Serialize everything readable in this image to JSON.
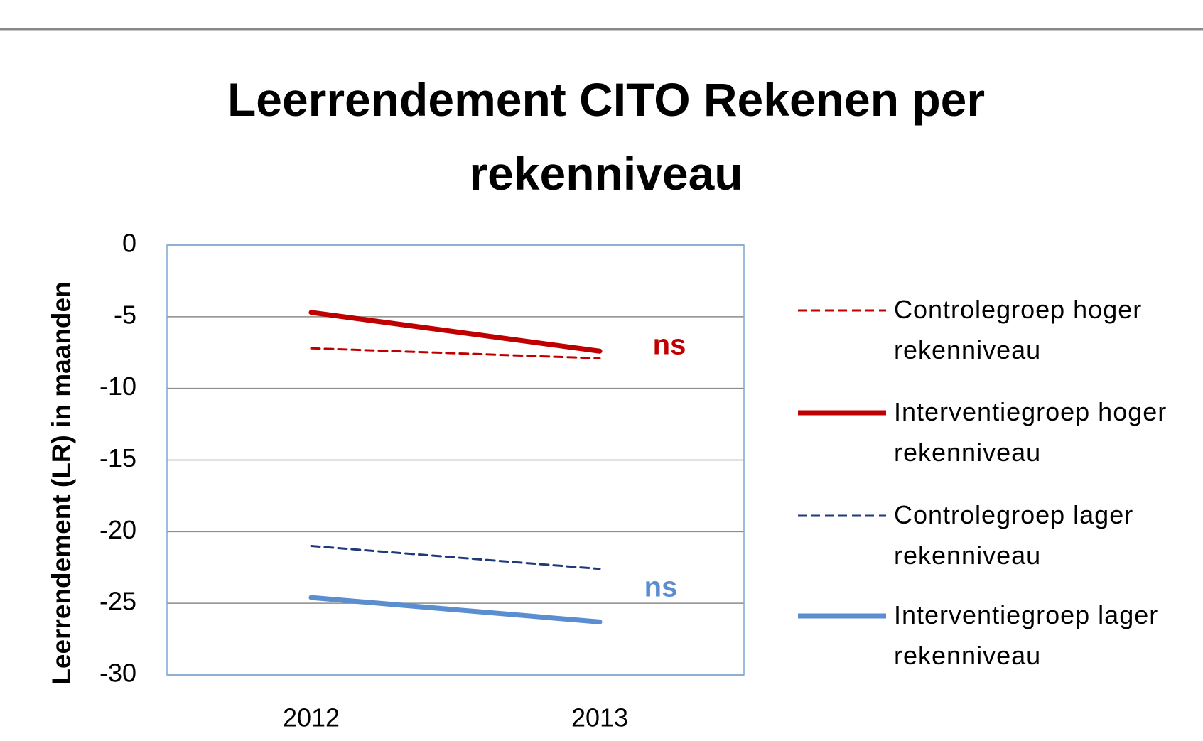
{
  "chart_data": {
    "type": "line",
    "title": "Leerrendement CITO Rekenen per rekenniveau",
    "ylabel": "Leerrendement (LR) in maanden",
    "categories": [
      "2012",
      "2013"
    ],
    "series": [
      {
        "name": "Controlegroep hoger rekenniveau",
        "color": "#c00000",
        "style": "dashed",
        "values": [
          -7.2,
          -7.9
        ]
      },
      {
        "name": "Interventiegroep hoger rekenniveau",
        "color": "#c00000",
        "style": "solid",
        "values": [
          -4.7,
          -7.4
        ]
      },
      {
        "name": "Controlegroep lager rekenniveau",
        "color": "#1f3a7a",
        "style": "dashed",
        "values": [
          -21.0,
          -22.6
        ]
      },
      {
        "name": "Interventiegroep lager rekenniveau",
        "color": "#5b8ed0",
        "style": "solid",
        "values": [
          -24.6,
          -26.3
        ]
      }
    ],
    "annotations": [
      {
        "text": "ns",
        "color": "#c00000"
      },
      {
        "text": "ns",
        "color": "#5b8ed0"
      }
    ],
    "ylim": [
      -30,
      0
    ],
    "yticks": [
      0,
      -5,
      -10,
      -15,
      -20,
      -25,
      -30
    ],
    "grid": true,
    "legend": "right"
  }
}
